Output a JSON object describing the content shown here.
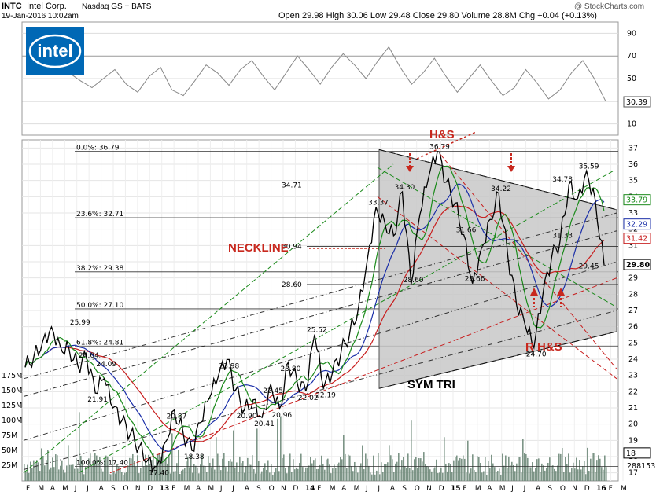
{
  "header": {
    "ticker": "INTC",
    "company": "Intel Corp.",
    "exchange": "Nasdaq GS + BATS",
    "date": "19-Jan-2016 10:02am",
    "source": "@ StockCharts.com",
    "open_label": "Open",
    "open": "29.98",
    "high_label": "High",
    "high": "30.06",
    "low_label": "Low",
    "low": "29.48",
    "close_label": "Close",
    "close": "29.80",
    "volume_label": "Volume",
    "volume": "28.8M",
    "chg_label": "Chg",
    "chg": "+0.04 (+0.13%)"
  },
  "logo": {
    "text": "intel",
    "color": "#0068b5"
  },
  "colors": {
    "price": "#000000",
    "ma_green": "#1a8a1a",
    "ma_blue": "#1a2ea8",
    "ma_red": "#c81e1e",
    "annotation_red": "#c8281e",
    "triangle_fill": "#c8c8c8",
    "volume": "#6f8a7a",
    "rsi": "#888888"
  },
  "chart_data": [
    {
      "type": "line",
      "title": "RSI",
      "y_ticks": [
        10,
        30,
        50,
        70,
        90
      ],
      "last_value": "30.39",
      "series": [
        {
          "values": [
            55,
            48,
            42,
            50,
            58,
            45,
            38,
            52,
            60,
            40,
            35,
            48,
            62,
            55,
            44,
            58,
            66,
            52,
            40,
            55,
            70,
            58,
            45,
            60,
            72,
            62,
            50,
            65,
            78,
            60,
            45,
            55,
            68,
            52,
            38,
            50,
            62,
            48,
            35,
            42,
            58,
            46,
            32,
            40,
            55,
            66,
            50,
            30
          ]
        }
      ]
    },
    {
      "type": "line",
      "y_ticks": [
        17,
        18,
        19,
        20,
        21,
        22,
        23,
        24,
        25,
        26,
        27,
        28,
        29,
        30,
        31,
        32,
        33,
        34,
        35,
        36,
        37
      ],
      "ylim": [
        16.5,
        37.5
      ],
      "x_ticks": [
        "F",
        "M",
        "A",
        "M",
        "J",
        "J",
        "A",
        "S",
        "O",
        "N",
        "D",
        "13",
        "F",
        "M",
        "A",
        "M",
        "J",
        "J",
        "A",
        "S",
        "O",
        "N",
        "D",
        "14",
        "F",
        "M",
        "A",
        "M",
        "J",
        "J",
        "A",
        "S",
        "O",
        "N",
        "D",
        "15",
        "F",
        "M",
        "A",
        "M",
        "J",
        "J",
        "A",
        "S",
        "O",
        "N",
        "D",
        "16",
        "F",
        "M"
      ],
      "right_price_labels": [
        "33.79",
        "32.29",
        "31.42",
        "29.80",
        "18"
      ],
      "volume_axis": [
        "175M",
        "150M",
        "125M",
        "100M",
        "75M",
        "50M",
        "25M"
      ],
      "volume_last": "288153",
      "price_labels": [
        {
          "text": "25.99",
          "x": 6,
          "y": 25.99
        },
        {
          "text": "24.64",
          "x": 7,
          "y": 24.64
        },
        {
          "text": "24.09",
          "x": 9,
          "y": 24.09
        },
        {
          "text": "21.91",
          "x": 8,
          "y": 21.91
        },
        {
          "text": "20.87",
          "x": 17,
          "y": 20.87
        },
        {
          "text": "18.38",
          "x": 19,
          "y": 18.38
        },
        {
          "text": "17.40",
          "x": 15,
          "y": 17.4
        },
        {
          "text": "23.98",
          "x": 23,
          "y": 23.98
        },
        {
          "text": "20.90",
          "x": 25,
          "y": 20.9
        },
        {
          "text": "20.41",
          "x": 27,
          "y": 20.41
        },
        {
          "text": "20.96",
          "x": 29,
          "y": 20.96
        },
        {
          "text": "22.45",
          "x": 28,
          "y": 22.45
        },
        {
          "text": "23.80",
          "x": 30,
          "y": 23.8
        },
        {
          "text": "22.02",
          "x": 32,
          "y": 22.02
        },
        {
          "text": "25.52",
          "x": 33,
          "y": 25.52
        },
        {
          "text": "22.19",
          "x": 34,
          "y": 22.19
        },
        {
          "text": "33.37",
          "x": 40,
          "y": 33.37
        },
        {
          "text": "34.30",
          "x": 43,
          "y": 34.3
        },
        {
          "text": "36.79",
          "x": 47,
          "y": 36.79
        },
        {
          "text": "28.60",
          "x": 44,
          "y": 28.6
        },
        {
          "text": "31.66",
          "x": 50,
          "y": 31.66
        },
        {
          "text": "28.66",
          "x": 51,
          "y": 28.66
        },
        {
          "text": "34.22",
          "x": 54,
          "y": 34.22
        },
        {
          "text": "24.70",
          "x": 58,
          "y": 24.7
        },
        {
          "text": "31.33",
          "x": 61,
          "y": 31.33
        },
        {
          "text": "34.78",
          "x": 61,
          "y": 34.78
        },
        {
          "text": "35.59",
          "x": 64,
          "y": 35.59
        },
        {
          "text": "29.45",
          "x": 64,
          "y": 29.45
        }
      ],
      "levels": [
        {
          "text": "34.71",
          "y": 34.71
        },
        {
          "text": "30.94",
          "y": 30.94
        },
        {
          "text": "28.60",
          "y": 28.6
        }
      ],
      "fib_levels": [
        {
          "text": "0.0%: 36.79",
          "y": 36.79
        },
        {
          "text": "23.6%: 32.71",
          "y": 32.71
        },
        {
          "text": "38.2%: 29.38",
          "y": 29.38
        },
        {
          "text": "50.0%: 27.10",
          "y": 27.1
        },
        {
          "text": "61.8%: 24.81",
          "y": 24.81
        },
        {
          "text": "100.0%: 17.40",
          "y": 17.4
        }
      ],
      "annotations": [
        "H&S",
        "NECKLINE",
        "R H&S",
        "SYM TRI"
      ],
      "series": [
        {
          "values": [
            23.5,
            24.2,
            25.1,
            25.99,
            24.8,
            24.64,
            23.6,
            24.09,
            21.91,
            22.8,
            21.0,
            20.2,
            19.4,
            18.6,
            17.8,
            17.4,
            18.9,
            20.87,
            19.5,
            18.38,
            20.1,
            21.6,
            22.9,
            23.98,
            22.1,
            20.9,
            21.5,
            20.41,
            22.45,
            20.96,
            23.8,
            22.6,
            22.02,
            25.52,
            22.19,
            23.1,
            24.4,
            25.6,
            27.2,
            30.1,
            33.37,
            32.4,
            31.6,
            34.3,
            28.6,
            32.9,
            35.2,
            36.79,
            34.9,
            33.6,
            31.66,
            28.66,
            30.8,
            32.6,
            34.22,
            30.5,
            27.4,
            26.1,
            24.7,
            27.9,
            30.2,
            31.33,
            34.78,
            33.9,
            35.59,
            33.79,
            29.8
          ]
        }
      ]
    }
  ]
}
